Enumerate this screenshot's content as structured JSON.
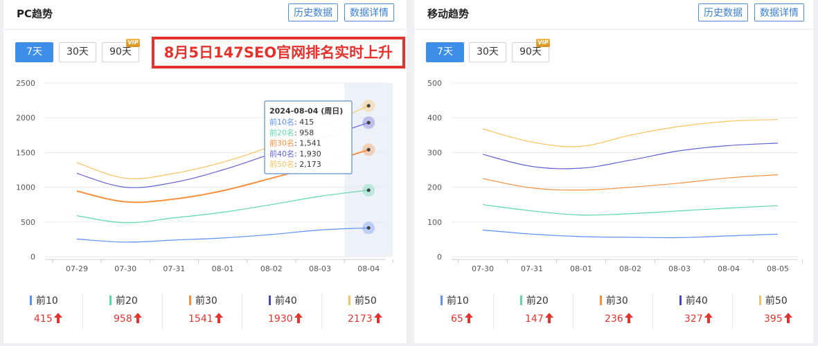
{
  "pc": {
    "title": "PC趋势",
    "buttons": {
      "history": "历史数据",
      "detail": "数据详情"
    },
    "ranges": [
      "7天",
      "30天",
      "90天"
    ],
    "active_range": "7天",
    "vip_label": "VIP",
    "banner": "8月5日147SEO官网排名实时上升",
    "tooltip": {
      "date": "2024-08-04 (周日)",
      "rows": [
        {
          "label": "前10名",
          "value": "415"
        },
        {
          "label": "前20名",
          "value": "958"
        },
        {
          "label": "前30名",
          "value": "1,541"
        },
        {
          "label": "前40名",
          "value": "1,930"
        },
        {
          "label": "前50名",
          "value": "2,173"
        }
      ]
    },
    "legend": [
      {
        "name": "前10",
        "value": "415"
      },
      {
        "name": "前20",
        "value": "958"
      },
      {
        "name": "前30",
        "value": "1541"
      },
      {
        "name": "前40",
        "value": "1930"
      },
      {
        "name": "前50",
        "value": "2173"
      }
    ]
  },
  "mobile": {
    "title": "移动趋势",
    "buttons": {
      "history": "历史数据",
      "detail": "数据详情"
    },
    "ranges": [
      "7天",
      "30天",
      "90天"
    ],
    "active_range": "7天",
    "vip_label": "VIP",
    "legend": [
      {
        "name": "前10",
        "value": "65"
      },
      {
        "name": "前20",
        "value": "147"
      },
      {
        "name": "前30",
        "value": "236"
      },
      {
        "name": "前40",
        "value": "327"
      },
      {
        "name": "前50",
        "value": "395"
      }
    ]
  },
  "colors": {
    "top10": "#5b8ff9",
    "top20": "#5ad8a6",
    "top30": "#f6903d",
    "top40": "#6060d8",
    "top50": "#f6c35b",
    "accent": "#3d8ee8",
    "up": "#e5322d"
  },
  "chart_data": [
    {
      "type": "line",
      "title": "PC趋势",
      "categories": [
        "07-29",
        "07-30",
        "07-31",
        "08-01",
        "08-02",
        "08-03",
        "08-04"
      ],
      "ylim": [
        0,
        2500
      ],
      "yticks": [
        0,
        500,
        1000,
        1500,
        2000,
        2500
      ],
      "grid": true,
      "highlighted_category": "08-04",
      "series": [
        {
          "name": "前10名",
          "values": [
            255,
            210,
            240,
            270,
            320,
            385,
            415
          ]
        },
        {
          "name": "前20名",
          "values": [
            590,
            490,
            560,
            640,
            750,
            870,
            958
          ]
        },
        {
          "name": "前30名",
          "values": [
            945,
            790,
            830,
            950,
            1130,
            1320,
            1541
          ]
        },
        {
          "name": "前40名",
          "values": [
            1200,
            1000,
            1070,
            1250,
            1480,
            1700,
            1930
          ]
        },
        {
          "name": "前50名",
          "values": [
            1355,
            1130,
            1200,
            1360,
            1590,
            1860,
            2173
          ]
        }
      ]
    },
    {
      "type": "line",
      "title": "移动趋势",
      "categories": [
        "07-30",
        "07-31",
        "08-01",
        "08-02",
        "08-03",
        "08-04",
        "08-05"
      ],
      "ylim": [
        0,
        500
      ],
      "yticks": [
        0,
        100,
        200,
        300,
        400,
        500
      ],
      "grid": true,
      "series": [
        {
          "name": "前10名",
          "values": [
            77,
            65,
            58,
            56,
            55,
            60,
            65
          ]
        },
        {
          "name": "前20名",
          "values": [
            150,
            132,
            120,
            124,
            132,
            140,
            147
          ]
        },
        {
          "name": "前30名",
          "values": [
            225,
            198,
            192,
            200,
            212,
            227,
            236
          ]
        },
        {
          "name": "前40名",
          "values": [
            295,
            260,
            255,
            278,
            305,
            320,
            327
          ]
        },
        {
          "name": "前50名",
          "values": [
            368,
            330,
            318,
            350,
            375,
            390,
            395
          ]
        }
      ]
    }
  ]
}
